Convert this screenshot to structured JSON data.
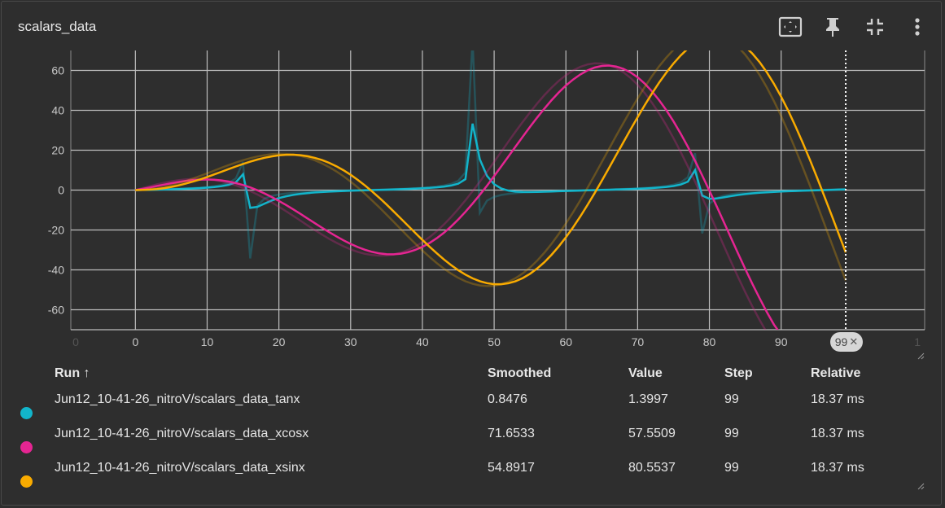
{
  "card": {
    "title": "scalars_data"
  },
  "toolbar": {
    "buttons": [
      {
        "name": "fit-domain-icon"
      },
      {
        "name": "pin-icon"
      },
      {
        "name": "collapse-icon"
      },
      {
        "name": "more-vert-icon"
      }
    ]
  },
  "colors": {
    "tanx": "#12b5cb",
    "xcosx": "#e52592",
    "xsinx": "#f9ab00",
    "grid": "#bdbdbd",
    "background": "#2e2e2e"
  },
  "chart_data": {
    "type": "line",
    "xlim": [
      -9,
      110
    ],
    "ylim": [
      -70,
      70
    ],
    "x_ticks": [
      "0",
      "0",
      "10",
      "20",
      "30",
      "40",
      "50",
      "60",
      "70",
      "80",
      "90",
      "1"
    ],
    "y_ticks": [
      "60",
      "40",
      "20",
      "0",
      "-20",
      "-40",
      "-60"
    ],
    "grid": true,
    "cursor_step": 99,
    "series": [
      {
        "name": "Jun12_10-41-26_nitroV/scalars_data_tanx",
        "color": "#12b5cb",
        "function": "tan(x/10)",
        "clip": [
          -70,
          70
        ]
      },
      {
        "name": "Jun12_10-41-26_nitroV/scalars_data_xcosx",
        "color": "#e52592",
        "function": "(x/10)*cos(x/10)*10"
      },
      {
        "name": "Jun12_10-41-26_nitroV/scalars_data_xsinx",
        "color": "#f9ab00",
        "function": "(x/10)*sin(x/10)*10"
      }
    ],
    "x": [
      0,
      99
    ],
    "smoothing": 0.6
  },
  "step_chip": {
    "label": "99",
    "close": "✕"
  },
  "table": {
    "headers": {
      "run": "Run ↑",
      "smoothed": "Smoothed",
      "value": "Value",
      "step": "Step",
      "relative": "Relative"
    },
    "rows": [
      {
        "run": "Jun12_10-41-26_nitroV/scalars_data_tanx",
        "smoothed": "0.8476",
        "value": "1.3997",
        "step": "99",
        "relative": "18.37 ms",
        "color": "#12b5cb"
      },
      {
        "run": "Jun12_10-41-26_nitroV/scalars_data_xcosx",
        "smoothed": "71.6533",
        "value": "57.5509",
        "step": "99",
        "relative": "18.37 ms",
        "color": "#e52592"
      },
      {
        "run": "Jun12_10-41-26_nitroV/scalars_data_xsinx",
        "smoothed": "54.8917",
        "value": "80.5537",
        "step": "99",
        "relative": "18.37 ms",
        "color": "#f9ab00"
      }
    ]
  }
}
